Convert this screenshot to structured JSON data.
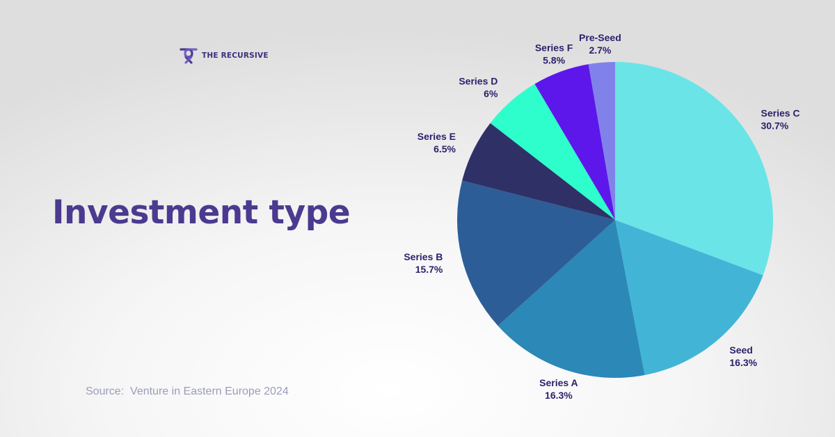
{
  "brand": {
    "name": "THE RECURSIVE",
    "logo_icon": "recursive-logo-icon",
    "color": "#4b3a8f"
  },
  "title": "Investment type",
  "source": "Source:  Venture in Eastern Europe 2024",
  "chart_data": {
    "type": "pie",
    "title": "Investment type",
    "start_angle_deg": 0,
    "direction": "clockwise",
    "slices": [
      {
        "label": "Series C",
        "value": 30.7,
        "display": "30.7%",
        "color": "#6be4e8"
      },
      {
        "label": "Seed",
        "value": 16.3,
        "display": "16.3%",
        "color": "#42b5d6"
      },
      {
        "label": "Series A",
        "value": 16.3,
        "display": "16.3%",
        "color": "#2b88b7"
      },
      {
        "label": "Series B",
        "value": 15.7,
        "display": "15.7%",
        "color": "#2d5d97"
      },
      {
        "label": "Series E",
        "value": 6.5,
        "display": "6.5%",
        "color": "#2f3166"
      },
      {
        "label": "Series D",
        "value": 6,
        "display": "6%",
        "color": "#2efdcc"
      },
      {
        "label": "Series F",
        "value": 5.8,
        "display": "5.8%",
        "color": "#5d17ea"
      },
      {
        "label": "Pre-Seed",
        "value": 2.7,
        "display": "2.7%",
        "color": "#8082ea"
      }
    ]
  }
}
